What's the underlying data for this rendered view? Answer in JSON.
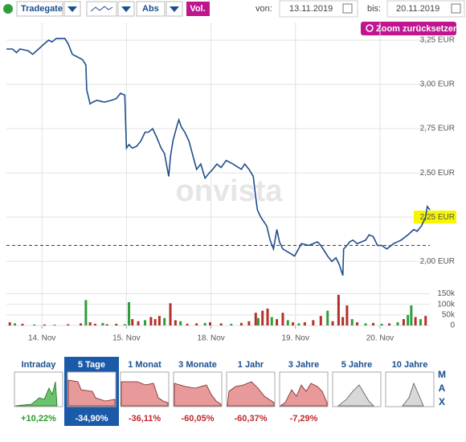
{
  "toolbar": {
    "exchange": "Tradegate",
    "mode": "Abs",
    "volume_button": "Vol.",
    "from_label": "von:",
    "from_date": "13.11.2019",
    "to_label": "bis:",
    "to_date": "20.11.2019",
    "zoom_reset": "Zoom zurücksetzen"
  },
  "watermark": "onvista",
  "chart_data": [
    {
      "type": "line",
      "color": "#1f4e8c",
      "grid": true,
      "xlim": [
        0.58,
        5.59
      ],
      "ylim": [
        1.91,
        3.35
      ],
      "yticks": [
        {
          "value": 2.0,
          "label": "2,00 EUR"
        },
        {
          "value": 2.25,
          "label": "2,25 EUR"
        },
        {
          "value": 2.5,
          "label": "2,50 EUR"
        },
        {
          "value": 2.75,
          "label": "2,75 EUR"
        },
        {
          "value": 3.0,
          "label": "3,00 EUR"
        },
        {
          "value": 3.25,
          "label": "3,25 EUR"
        }
      ],
      "highlight_ytick": 1,
      "highlight_color": "#f7f500",
      "reference_line": 2.09,
      "x": [
        0.58,
        0.65,
        0.7,
        0.74,
        0.84,
        0.89,
        0.96,
        1.03,
        1.08,
        1.12,
        1.17,
        1.27,
        1.31,
        1.36,
        1.44,
        1.48,
        1.52,
        1.53,
        1.57,
        1.6,
        1.65,
        1.74,
        1.82,
        1.88,
        1.93,
        1.98,
        2.0,
        2.03,
        2.07,
        2.12,
        2.17,
        2.22,
        2.26,
        2.31,
        2.36,
        2.41,
        2.45,
        2.5,
        2.52,
        2.55,
        2.6,
        2.62,
        2.65,
        2.69,
        2.74,
        2.79,
        2.83,
        2.88,
        2.93,
        2.98,
        3.02,
        3.07,
        3.12,
        3.18,
        3.26,
        3.36,
        3.4,
        3.45,
        3.5,
        3.53,
        3.55,
        3.59,
        3.66,
        3.7,
        3.74,
        3.78,
        3.81,
        3.85,
        3.92,
        3.99,
        4.07,
        4.16,
        4.26,
        4.3,
        4.38,
        4.43,
        4.48,
        4.52,
        4.56,
        4.57,
        4.61,
        4.64,
        4.68,
        4.73,
        4.83,
        4.87,
        4.92,
        4.97,
        5.02,
        5.08,
        5.16,
        5.25,
        5.33,
        5.4,
        5.44,
        5.49,
        5.54,
        5.56,
        5.59
      ],
      "values": [
        3.2,
        3.2,
        3.18,
        3.2,
        3.19,
        3.17,
        3.2,
        3.23,
        3.25,
        3.24,
        3.26,
        3.26,
        3.23,
        3.17,
        3.15,
        3.14,
        3.11,
        2.97,
        2.89,
        2.9,
        2.91,
        2.9,
        2.91,
        2.92,
        2.95,
        2.94,
        2.64,
        2.66,
        2.64,
        2.65,
        2.68,
        2.73,
        2.73,
        2.75,
        2.7,
        2.64,
        2.61,
        2.48,
        2.59,
        2.68,
        2.77,
        2.8,
        2.76,
        2.73,
        2.68,
        2.59,
        2.52,
        2.55,
        2.47,
        2.5,
        2.52,
        2.55,
        2.53,
        2.57,
        2.55,
        2.52,
        2.55,
        2.52,
        2.48,
        2.36,
        2.29,
        2.25,
        2.2,
        2.12,
        2.07,
        2.18,
        2.11,
        2.07,
        2.05,
        2.03,
        2.1,
        2.09,
        2.11,
        2.09,
        2.03,
        2.0,
        2.02,
        1.98,
        1.92,
        2.07,
        2.09,
        2.11,
        2.12,
        2.1,
        2.12,
        2.15,
        2.14,
        2.09,
        2.09,
        2.07,
        2.1,
        2.12,
        2.15,
        2.18,
        2.17,
        2.2,
        2.25,
        2.31,
        2.29
      ]
    },
    {
      "type": "bar",
      "grid": true,
      "xlim": [
        0.58,
        5.59
      ],
      "ylim": [
        0,
        190000
      ],
      "xticks": [
        {
          "value": 1,
          "label": "14. Nov"
        },
        {
          "value": 2,
          "label": "15. Nov"
        },
        {
          "value": 3,
          "label": "18. Nov"
        },
        {
          "value": 4,
          "label": "19. Nov"
        },
        {
          "value": 5,
          "label": "20. Nov"
        }
      ],
      "yticks": [
        0,
        {
          "value": 50000,
          "label": "50k"
        },
        {
          "value": 100000,
          "label": "100k"
        },
        {
          "value": 150000,
          "label": "150k"
        }
      ],
      "x": [
        0.62,
        0.68,
        0.77,
        0.91,
        1.03,
        1.15,
        1.31,
        1.46,
        1.52,
        1.57,
        1.63,
        1.72,
        1.77,
        1.88,
        1.98,
        2.03,
        2.07,
        2.14,
        2.22,
        2.29,
        2.34,
        2.39,
        2.45,
        2.52,
        2.58,
        2.64,
        2.72,
        2.83,
        2.93,
        2.99,
        3.12,
        3.24,
        3.36,
        3.45,
        3.53,
        3.56,
        3.61,
        3.67,
        3.72,
        3.78,
        3.85,
        3.91,
        3.97,
        4.04,
        4.11,
        4.21,
        4.3,
        4.38,
        4.44,
        4.51,
        4.56,
        4.61,
        4.67,
        4.73,
        4.83,
        4.92,
        5.02,
        5.11,
        5.21,
        5.28,
        5.33,
        5.37,
        5.42,
        5.48,
        5.54
      ],
      "values": [
        15000,
        10000,
        8000,
        5000,
        5000,
        4000,
        6000,
        10000,
        120000,
        15000,
        8000,
        12000,
        6000,
        8000,
        6000,
        110000,
        30000,
        20000,
        25000,
        40000,
        30000,
        45000,
        35000,
        105000,
        25000,
        20000,
        8000,
        10000,
        12000,
        15000,
        10000,
        8000,
        12000,
        20000,
        60000,
        35000,
        70000,
        80000,
        40000,
        30000,
        60000,
        25000,
        15000,
        10000,
        15000,
        25000,
        45000,
        70000,
        20000,
        145000,
        40000,
        95000,
        30000,
        15000,
        10000,
        12000,
        8000,
        10000,
        15000,
        30000,
        50000,
        95000,
        40000,
        30000,
        45000
      ],
      "colors": [
        "#b5302a",
        "#2e9e3a",
        "#b5302a",
        "#2e9e3a",
        "#b5302a",
        "#2e9e3a",
        "#b5302a",
        "#b5302a",
        "#2e9e3a",
        "#b5302a",
        "#b5302a",
        "#2e9e3a",
        "#b5302a",
        "#b5302a",
        "#2e9e3a",
        "#2e9e3a",
        "#b5302a",
        "#b5302a",
        "#2e9e3a",
        "#b5302a",
        "#b5302a",
        "#b5302a",
        "#2e9e3a",
        "#b5302a",
        "#b5302a",
        "#2e9e3a",
        "#b5302a",
        "#b5302a",
        "#2e9e3a",
        "#b5302a",
        "#b5302a",
        "#2e9e3a",
        "#b5302a",
        "#b5302a",
        "#b5302a",
        "#2e9e3a",
        "#b5302a",
        "#b5302a",
        "#2e9e3a",
        "#b5302a",
        "#b5302a",
        "#2e9e3a",
        "#b5302a",
        "#2e9e3a",
        "#b5302a",
        "#b5302a",
        "#b5302a",
        "#2e9e3a",
        "#b5302a",
        "#b5302a",
        "#b5302a",
        "#b5302a",
        "#2e9e3a",
        "#b5302a",
        "#2e9e3a",
        "#b5302a",
        "#2e9e3a",
        "#b5302a",
        "#2e9e3a",
        "#b5302a",
        "#2e9e3a",
        "#2e9e3a",
        "#b5302a",
        "#2e9e3a",
        "#b5302a"
      ]
    }
  ],
  "periods": {
    "selected": 1,
    "max_label": "MAX",
    "items": [
      {
        "label": "Intraday",
        "change": "+10,22%",
        "color": "#2a9a2a"
      },
      {
        "label": "5 Tage",
        "change": "-34,90%",
        "color": "#ffffff"
      },
      {
        "label": "1 Monat",
        "change": "-36,11%",
        "color": "#c0282d"
      },
      {
        "label": "3 Monate",
        "change": "-60,05%",
        "color": "#c0282d"
      },
      {
        "label": "1 Jahr",
        "change": "-60,37%",
        "color": "#c0282d"
      },
      {
        "label": "3 Jahre",
        "change": "-7,29%",
        "color": "#c0282d"
      },
      {
        "label": "5 Jahre"
      },
      {
        "label": "10 Jahre"
      }
    ]
  }
}
